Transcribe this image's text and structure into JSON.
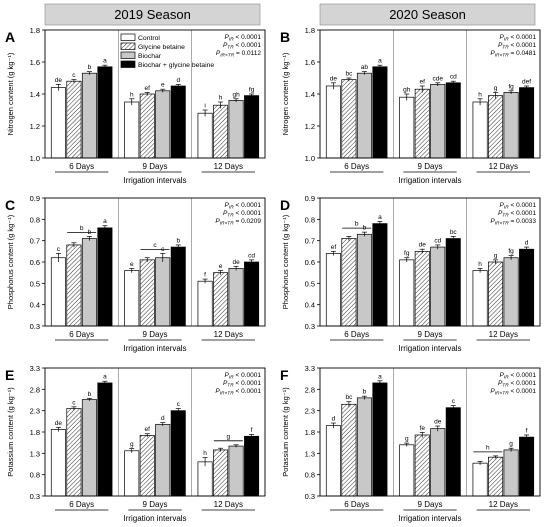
{
  "season_headers": [
    "2019 Season",
    "2020 Season"
  ],
  "colors": {
    "header_bg": "#d4d4d4",
    "control": "#ffffff",
    "glycine_betaine": "#ffffff",
    "biochar": "#c8c8c8",
    "biochar_glycine_betaine": "#000000"
  },
  "chart_data": [
    {
      "type": "bar",
      "panel": "A",
      "season": "2019 Season",
      "ylabel": "Nitrogen content (g kg⁻¹)",
      "xlabel": "Irrigation intervals",
      "ylim": [
        1.0,
        1.8
      ],
      "yticks": [
        "1.0",
        "1.2",
        "1.4",
        "1.6",
        "1.8"
      ],
      "categories": [
        "6 Days",
        "9 Days",
        "12 Days"
      ],
      "series": [
        {
          "name": "Control",
          "values": [
            1.44,
            1.35,
            1.28
          ],
          "errors": [
            0.02,
            0.02,
            0.02
          ]
        },
        {
          "name": "Glycine betaine",
          "values": [
            1.48,
            1.4,
            1.33
          ],
          "errors": [
            0.01,
            0.01,
            0.02
          ]
        },
        {
          "name": "Biochar",
          "values": [
            1.53,
            1.42,
            1.36
          ],
          "errors": [
            0.01,
            0.01,
            0.01
          ]
        },
        {
          "name": "Biochar + glycine betaine",
          "values": [
            1.57,
            1.45,
            1.39
          ],
          "errors": [
            0.01,
            0.01,
            0.01
          ]
        }
      ],
      "letters": [
        [
          "de",
          "c",
          "b",
          "a"
        ],
        [
          "h",
          "ef",
          "e",
          "d"
        ],
        [
          "i",
          "h",
          "gh",
          "fg"
        ]
      ],
      "stats": [
        "P IR < 0.0001",
        "P TR < 0.0001",
        "P IR×TR = 0.0112"
      ]
    },
    {
      "type": "bar",
      "panel": "B",
      "season": "2020 Season",
      "ylabel": "Nitrogen content (g kg⁻¹)",
      "xlabel": "Irrigation intervals",
      "ylim": [
        1.0,
        1.8
      ],
      "yticks": [
        "1.0",
        "1.2",
        "1.4",
        "1.6",
        "1.8"
      ],
      "categories": [
        "6 Days",
        "9 Days",
        "12 Days"
      ],
      "series": [
        {
          "name": "Control",
          "values": [
            1.45,
            1.38,
            1.35
          ],
          "errors": [
            0.02,
            0.02,
            0.02
          ]
        },
        {
          "name": "Glycine betaine",
          "values": [
            1.49,
            1.43,
            1.39
          ],
          "errors": [
            0.01,
            0.02,
            0.02
          ]
        },
        {
          "name": "Biochar",
          "values": [
            1.53,
            1.46,
            1.41
          ],
          "errors": [
            0.01,
            0.01,
            0.01
          ]
        },
        {
          "name": "Biochar + glycine betaine",
          "values": [
            1.57,
            1.47,
            1.44
          ],
          "errors": [
            0.01,
            0.01,
            0.01
          ]
        }
      ],
      "letters": [
        [
          "de",
          "bc",
          "ab",
          "a"
        ],
        [
          "gh",
          "ef",
          "cde",
          "cd"
        ],
        [
          "h",
          "g",
          "fg",
          "def"
        ]
      ],
      "stats": [
        "P IR < 0.0001",
        "P TR < 0.0001",
        "P IR×TR = 0.0481"
      ]
    },
    {
      "type": "bar",
      "panel": "C",
      "season": "2019 Season",
      "ylabel": "Phosphorus content (g kg⁻¹)",
      "xlabel": "Irrigation intervals",
      "ylim": [
        0.3,
        0.9
      ],
      "yticks": [
        "0.3",
        "0.4",
        "0.5",
        "0.6",
        "0.7",
        "0.8",
        "0.9"
      ],
      "categories": [
        "6 Days",
        "9 Days",
        "12 Days"
      ],
      "series": [
        {
          "name": "Control",
          "values": [
            0.62,
            0.56,
            0.51
          ],
          "errors": [
            0.02,
            0.01,
            0.01
          ]
        },
        {
          "name": "Glycine betaine",
          "values": [
            0.68,
            0.61,
            0.55
          ],
          "errors": [
            0.01,
            0.01,
            0.01
          ]
        },
        {
          "name": "Biochar",
          "values": [
            0.71,
            0.62,
            0.57
          ],
          "errors": [
            0.01,
            0.02,
            0.01
          ]
        },
        {
          "name": "Biochar + glycine betaine",
          "values": [
            0.76,
            0.67,
            0.6
          ],
          "errors": [
            0.01,
            0.01,
            0.01
          ]
        }
      ],
      "letters": [
        [
          "c",
          "",
          "b",
          "a"
        ],
        [
          "e",
          "",
          "c",
          "b"
        ],
        [
          "f",
          "e",
          "de",
          "cd"
        ]
      ],
      "group_brackets": [
        {
          "from": 1,
          "to": 2,
          "label": "b"
        },
        {
          "from": 1,
          "to": 2,
          "label": "c"
        },
        null
      ],
      "stats": [
        "P IR < 0.0001",
        "P TR < 0.0001",
        "P IR×TR = 0.0209"
      ]
    },
    {
      "type": "bar",
      "panel": "D",
      "season": "2020 Season",
      "ylabel": "Phosphorus content (g kg⁻¹)",
      "xlabel": "Irrigation intervals",
      "ylim": [
        0.3,
        0.9
      ],
      "yticks": [
        "0.3",
        "0.4",
        "0.5",
        "0.6",
        "0.7",
        "0.8",
        "0.9"
      ],
      "categories": [
        "6 Days",
        "9 Days",
        "12 Days"
      ],
      "series": [
        {
          "name": "Control",
          "values": [
            0.64,
            0.61,
            0.56
          ],
          "errors": [
            0.01,
            0.01,
            0.01
          ]
        },
        {
          "name": "Glycine betaine",
          "values": [
            0.71,
            0.65,
            0.6
          ],
          "errors": [
            0.01,
            0.01,
            0.01
          ]
        },
        {
          "name": "Biochar",
          "values": [
            0.73,
            0.67,
            0.62
          ],
          "errors": [
            0.01,
            0.01,
            0.01
          ]
        },
        {
          "name": "Biochar + glycine betaine",
          "values": [
            0.78,
            0.71,
            0.66
          ],
          "errors": [
            0.01,
            0.01,
            0.01
          ]
        }
      ],
      "letters": [
        [
          "ef",
          "",
          "b",
          "a"
        ],
        [
          "fg",
          "de",
          "cd",
          "bc"
        ],
        [
          "h",
          "g",
          "fg",
          "d"
        ]
      ],
      "group_brackets": [
        {
          "from": 1,
          "to": 2,
          "label": "b"
        },
        null,
        null
      ],
      "stats": [
        "P IR < 0.0001",
        "P TR < 0.0001",
        "P IR×TR = 0.0033"
      ]
    },
    {
      "type": "bar",
      "panel": "E",
      "season": "2019 Season",
      "ylabel": "Potassium content (g kg⁻¹)",
      "xlabel": "Irrigation intervals",
      "ylim": [
        0.3,
        3.3
      ],
      "yticks": [
        "0.3",
        "0.8",
        "1.3",
        "1.8",
        "2.3",
        "2.8",
        "3.3"
      ],
      "categories": [
        "6 Days",
        "9 Days",
        "12 Days"
      ],
      "series": [
        {
          "name": "Control",
          "values": [
            1.86,
            1.36,
            1.1
          ],
          "errors": [
            0.05,
            0.05,
            0.1
          ]
        },
        {
          "name": "Glycine betaine",
          "values": [
            2.35,
            1.72,
            1.38
          ],
          "errors": [
            0.04,
            0.04,
            0.04
          ]
        },
        {
          "name": "Biochar",
          "values": [
            2.56,
            1.98,
            1.47
          ],
          "errors": [
            0.03,
            0.04,
            0.03
          ]
        },
        {
          "name": "Biochar + glycine betaine",
          "values": [
            2.95,
            2.3,
            1.7
          ],
          "errors": [
            0.04,
            0.05,
            0.04
          ]
        }
      ],
      "letters": [
        [
          "de",
          "c",
          "b",
          "a"
        ],
        [
          "g",
          "ef",
          "d",
          "c"
        ],
        [
          "h",
          "",
          "",
          "f"
        ]
      ],
      "group_brackets": [
        null,
        null,
        {
          "from": 1,
          "to": 2,
          "label": "g"
        }
      ],
      "stats": [
        "P IR < 0.0001",
        "P TR < 0.0001",
        "P IR×TR < 0.0001"
      ]
    },
    {
      "type": "bar",
      "panel": "F",
      "season": "2020 Season",
      "ylabel": "Potassium content (g kg⁻¹)",
      "xlabel": "Irrigation intervals",
      "ylim": [
        0.3,
        3.3
      ],
      "yticks": [
        "0.3",
        "0.8",
        "1.3",
        "1.8",
        "2.3",
        "2.8",
        "3.3"
      ],
      "categories": [
        "6 Days",
        "9 Days",
        "12 Days"
      ],
      "series": [
        {
          "name": "Control",
          "values": [
            1.95,
            1.5,
            1.07
          ],
          "errors": [
            0.06,
            0.04,
            0.04
          ]
        },
        {
          "name": "Glycine betaine",
          "values": [
            2.45,
            1.73,
            1.21
          ],
          "errors": [
            0.06,
            0.06,
            0.03
          ]
        },
        {
          "name": "Biochar",
          "values": [
            2.6,
            1.88,
            1.38
          ],
          "errors": [
            0.04,
            0.06,
            0.04
          ]
        },
        {
          "name": "Biochar + glycine betaine",
          "values": [
            2.95,
            2.37,
            1.68
          ],
          "errors": [
            0.05,
            0.05,
            0.05
          ]
        }
      ],
      "letters": [
        [
          "d",
          "bc",
          "b",
          "a"
        ],
        [
          "g",
          "fe",
          "de",
          "c"
        ],
        [
          "",
          "",
          "g",
          "f"
        ]
      ],
      "group_brackets": [
        null,
        null,
        {
          "from": 0,
          "to": 1,
          "label": "h"
        }
      ],
      "stats": [
        "P IR < 0.0001",
        "P TR < 0.0001",
        "P IR×TR < 0.0001"
      ]
    }
  ]
}
